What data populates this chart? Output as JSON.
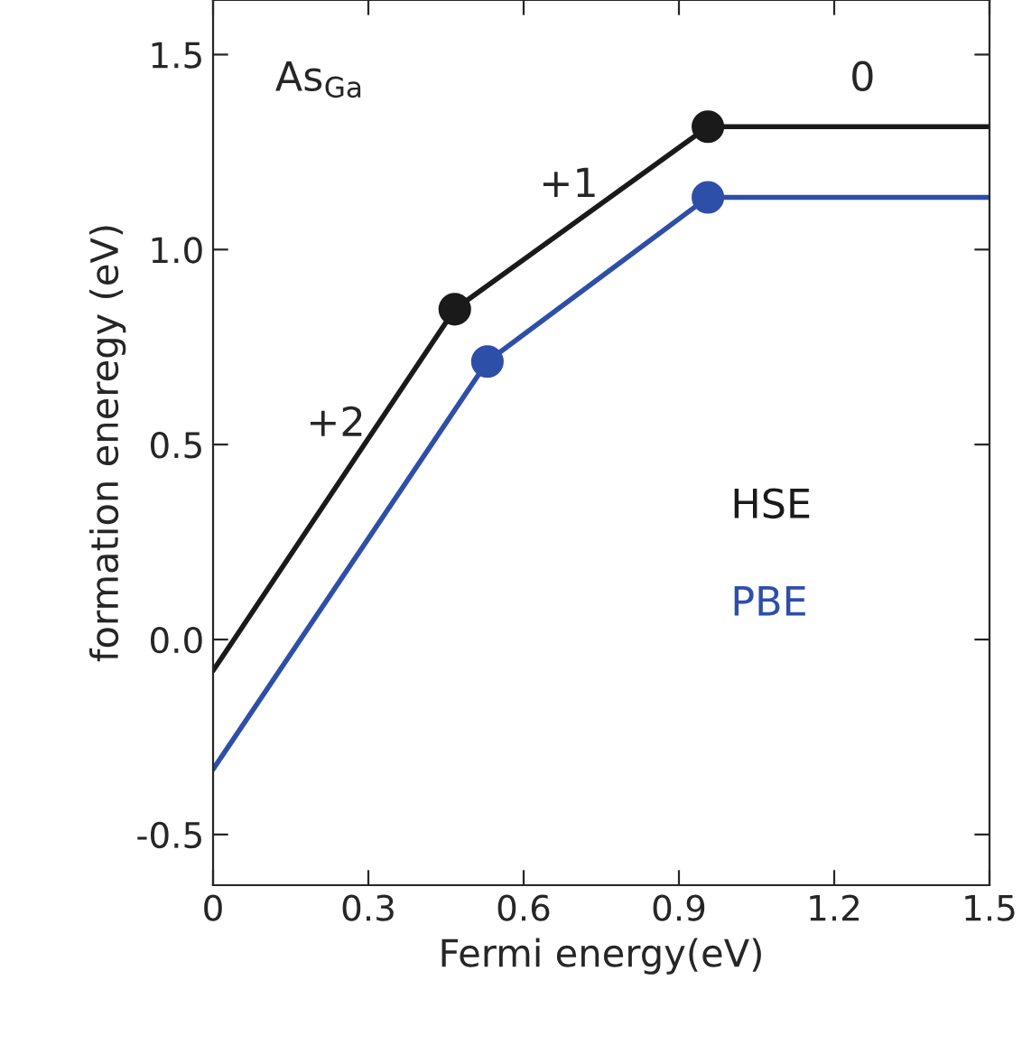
{
  "chart_data": {
    "type": "line",
    "xlabel": "Fermi energy(eV)",
    "ylabel": "formation eneregy (eV)",
    "xlim": [
      0,
      1.5
    ],
    "ylim": [
      -0.63,
      1.64
    ],
    "xticks": [
      0,
      0.3,
      0.6,
      0.9,
      1.2,
      1.5
    ],
    "yticks": [
      {
        "value": -0.5,
        "label": "-0.5"
      },
      {
        "value": 0,
        "label": "0.0"
      },
      0.5,
      {
        "value": 1,
        "label": "1.0"
      },
      1.5
    ],
    "marker": "circle",
    "line_style": "solid",
    "grid": false,
    "legend": false,
    "series": [
      {
        "name": "HSE",
        "color": "#1a1a1a",
        "x": [
          0,
          0.467,
          0.956,
          1.5
        ],
        "values": [
          -0.08,
          0.847,
          1.315,
          1.315
        ]
      },
      {
        "name": "PBE",
        "color": "#2e4fa8",
        "x": [
          0,
          0.53,
          0.956,
          1.5
        ],
        "values": [
          -0.333,
          0.713,
          1.134,
          1.134
        ]
      }
    ],
    "annotations": [
      "As$_{Ga}$",
      "+2",
      "+1",
      "0"
    ]
  }
}
